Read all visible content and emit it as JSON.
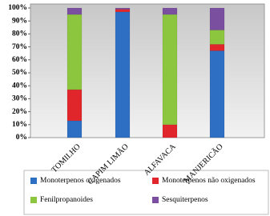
{
  "chart_data": {
    "type": "stacked-bar",
    "categories": [
      "TOMILHO",
      "CAPIM LIMÃO",
      "ALFAVACA",
      "MANJERICÃO"
    ],
    "series": [
      {
        "name": "Monoterpenos oxigenados",
        "color": "#2e6fc4",
        "values": [
          13,
          97,
          0,
          67
        ]
      },
      {
        "name": "Monoterpenos não oxigenados",
        "color": "#e0262b",
        "values": [
          24,
          2,
          10,
          5
        ]
      },
      {
        "name": "Fenilpropanoides",
        "color": "#8cc63f",
        "values": [
          58,
          0,
          85,
          11
        ]
      },
      {
        "name": "Sesquiterpenos",
        "color": "#7b4fa0",
        "values": [
          5,
          1,
          5,
          17
        ]
      }
    ],
    "ylim": [
      0,
      100
    ],
    "yticks": [
      {
        "value": 0,
        "label": "0%"
      },
      {
        "value": 10,
        "label": "10%"
      },
      {
        "value": 20,
        "label": "20%"
      },
      {
        "value": 30,
        "label": "30%"
      },
      {
        "value": 40,
        "label": "40%"
      },
      {
        "value": 50,
        "label": "50%"
      },
      {
        "value": 60,
        "label": "60%"
      },
      {
        "value": 70,
        "label": "70%"
      },
      {
        "value": 80,
        "label": "80%"
      },
      {
        "value": 90,
        "label": "90%"
      },
      {
        "value": 100,
        "label": "100%"
      }
    ]
  }
}
